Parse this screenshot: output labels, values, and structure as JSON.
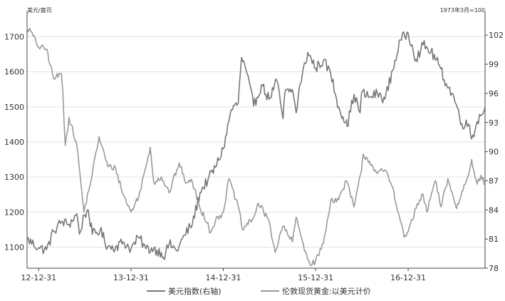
{
  "chart_data": {
    "type": "line",
    "left_unit": "美元/盎司",
    "right_unit": "1973年3月=100",
    "x_ticks": [
      "12-12-31",
      "13-12-31",
      "14-12-31",
      "15-12-31",
      "16-12-31"
    ],
    "x_range": [
      "2012-11-15",
      "2017-10-31"
    ],
    "y_left": {
      "ticks": [
        1100,
        1200,
        1300,
        1400,
        1500,
        1600,
        1700
      ],
      "range": [
        1040,
        1760
      ]
    },
    "y_right": {
      "ticks": [
        78,
        81,
        84,
        87,
        90,
        93,
        96,
        99,
        102
      ],
      "range": [
        78,
        104
      ]
    },
    "grid": true,
    "legend_position": "bottom",
    "series": [
      {
        "name": "美元指数(右轴)",
        "axis": "right",
        "color": "#777777",
        "points": [
          [
            "2012-11-15",
            81.0
          ],
          [
            "2012-12-31",
            80.1
          ],
          [
            "2013-01-31",
            79.9
          ],
          [
            "2013-02-28",
            81.8
          ],
          [
            "2013-03-31",
            82.8
          ],
          [
            "2013-04-30",
            82.5
          ],
          [
            "2013-05-31",
            83.6
          ],
          [
            "2013-06-10",
            81.5
          ],
          [
            "2013-06-30",
            83.5
          ],
          [
            "2013-07-15",
            84.0
          ],
          [
            "2013-07-31",
            81.5
          ],
          [
            "2013-08-31",
            81.9
          ],
          [
            "2013-09-30",
            80.2
          ],
          [
            "2013-10-31",
            80.2
          ],
          [
            "2013-11-30",
            80.7
          ],
          [
            "2013-12-31",
            80.0
          ],
          [
            "2014-01-31",
            81.2
          ],
          [
            "2014-02-28",
            80.0
          ],
          [
            "2014-03-31",
            80.0
          ],
          [
            "2014-04-30",
            79.6
          ],
          [
            "2014-05-08",
            79.1
          ],
          [
            "2014-05-31",
            80.5
          ],
          [
            "2014-06-30",
            79.8
          ],
          [
            "2014-07-31",
            81.4
          ],
          [
            "2014-08-31",
            82.6
          ],
          [
            "2014-09-30",
            85.8
          ],
          [
            "2014-10-31",
            87.1
          ],
          [
            "2014-11-30",
            88.4
          ],
          [
            "2014-12-31",
            90.3
          ],
          [
            "2015-01-31",
            94.3
          ],
          [
            "2015-02-28",
            95.0
          ],
          [
            "2015-03-13",
            99.7
          ],
          [
            "2015-03-31",
            98.4
          ],
          [
            "2015-04-30",
            94.7
          ],
          [
            "2015-05-31",
            96.9
          ],
          [
            "2015-06-30",
            95.4
          ],
          [
            "2015-07-31",
            97.3
          ],
          [
            "2015-08-24",
            93.4
          ],
          [
            "2015-08-31",
            96.0
          ],
          [
            "2015-09-30",
            96.4
          ],
          [
            "2015-10-15",
            94.0
          ],
          [
            "2015-10-31",
            97.0
          ],
          [
            "2015-11-30",
            100.2
          ],
          [
            "2015-12-31",
            98.6
          ],
          [
            "2016-01-31",
            99.4
          ],
          [
            "2016-02-29",
            98.0
          ],
          [
            "2016-03-31",
            94.6
          ],
          [
            "2016-04-30",
            93.0
          ],
          [
            "2016-05-03",
            92.6
          ],
          [
            "2016-05-31",
            95.9
          ],
          [
            "2016-06-24",
            94.0
          ],
          [
            "2016-06-30",
            96.1
          ],
          [
            "2016-07-31",
            95.6
          ],
          [
            "2016-08-31",
            96.0
          ],
          [
            "2016-09-30",
            95.4
          ],
          [
            "2016-10-31",
            98.4
          ],
          [
            "2016-11-30",
            101.5
          ],
          [
            "2016-12-31",
            102.2
          ],
          [
            "2017-01-15",
            101.0
          ],
          [
            "2017-01-31",
            99.5
          ],
          [
            "2017-02-28",
            101.0
          ],
          [
            "2017-03-31",
            100.3
          ],
          [
            "2017-04-30",
            99.0
          ],
          [
            "2017-05-31",
            97.0
          ],
          [
            "2017-06-30",
            95.6
          ],
          [
            "2017-07-31",
            92.9
          ],
          [
            "2017-08-31",
            92.7
          ],
          [
            "2017-09-08",
            91.3
          ],
          [
            "2017-09-30",
            93.1
          ],
          [
            "2017-10-31",
            94.6
          ]
        ]
      },
      {
        "name": "伦敦现货黄金:以美元计价",
        "axis": "left",
        "color": "#999999",
        "points": [
          [
            "2012-11-15",
            1725
          ],
          [
            "2012-11-30",
            1715
          ],
          [
            "2012-12-31",
            1670
          ],
          [
            "2013-01-31",
            1665
          ],
          [
            "2013-02-28",
            1580
          ],
          [
            "2013-03-31",
            1595
          ],
          [
            "2013-04-05",
            1550
          ],
          [
            "2013-04-15",
            1390
          ],
          [
            "2013-04-30",
            1470
          ],
          [
            "2013-05-31",
            1390
          ],
          [
            "2013-06-28",
            1200
          ],
          [
            "2013-07-31",
            1310
          ],
          [
            "2013-08-27",
            1415
          ],
          [
            "2013-09-30",
            1330
          ],
          [
            "2013-10-31",
            1325
          ],
          [
            "2013-11-30",
            1250
          ],
          [
            "2013-12-31",
            1200
          ],
          [
            "2014-01-31",
            1245
          ],
          [
            "2014-02-28",
            1330
          ],
          [
            "2014-03-17",
            1385
          ],
          [
            "2014-03-31",
            1285
          ],
          [
            "2014-04-30",
            1300
          ],
          [
            "2014-05-31",
            1255
          ],
          [
            "2014-06-30",
            1320
          ],
          [
            "2014-07-10",
            1340
          ],
          [
            "2014-07-31",
            1290
          ],
          [
            "2014-08-31",
            1285
          ],
          [
            "2014-09-30",
            1210
          ],
          [
            "2014-10-31",
            1170
          ],
          [
            "2014-11-07",
            1140
          ],
          [
            "2014-11-30",
            1175
          ],
          [
            "2014-12-31",
            1200
          ],
          [
            "2015-01-22",
            1295
          ],
          [
            "2015-02-28",
            1215
          ],
          [
            "2015-03-17",
            1150
          ],
          [
            "2015-04-30",
            1185
          ],
          [
            "2015-05-18",
            1225
          ],
          [
            "2015-06-30",
            1175
          ],
          [
            "2015-07-24",
            1085
          ],
          [
            "2015-08-24",
            1160
          ],
          [
            "2015-09-30",
            1115
          ],
          [
            "2015-10-15",
            1185
          ],
          [
            "2015-10-31",
            1140
          ],
          [
            "2015-11-30",
            1065
          ],
          [
            "2015-12-17",
            1050
          ],
          [
            "2015-12-31",
            1062
          ],
          [
            "2016-01-31",
            1110
          ],
          [
            "2016-02-29",
            1235
          ],
          [
            "2016-03-31",
            1235
          ],
          [
            "2016-04-30",
            1290
          ],
          [
            "2016-05-31",
            1215
          ],
          [
            "2016-06-30",
            1320
          ],
          [
            "2016-07-06",
            1365
          ],
          [
            "2016-07-31",
            1345
          ],
          [
            "2016-08-31",
            1310
          ],
          [
            "2016-09-30",
            1320
          ],
          [
            "2016-10-31",
            1270
          ],
          [
            "2016-11-30",
            1175
          ],
          [
            "2016-12-15",
            1128
          ],
          [
            "2016-12-31",
            1145
          ],
          [
            "2017-01-31",
            1210
          ],
          [
            "2017-02-28",
            1250
          ],
          [
            "2017-03-15",
            1200
          ],
          [
            "2017-04-17",
            1290
          ],
          [
            "2017-05-09",
            1215
          ],
          [
            "2017-06-06",
            1295
          ],
          [
            "2017-07-10",
            1210
          ],
          [
            "2017-08-31",
            1320
          ],
          [
            "2017-09-08",
            1350
          ],
          [
            "2017-09-30",
            1280
          ],
          [
            "2017-10-15",
            1305
          ],
          [
            "2017-10-31",
            1275
          ]
        ]
      }
    ]
  }
}
